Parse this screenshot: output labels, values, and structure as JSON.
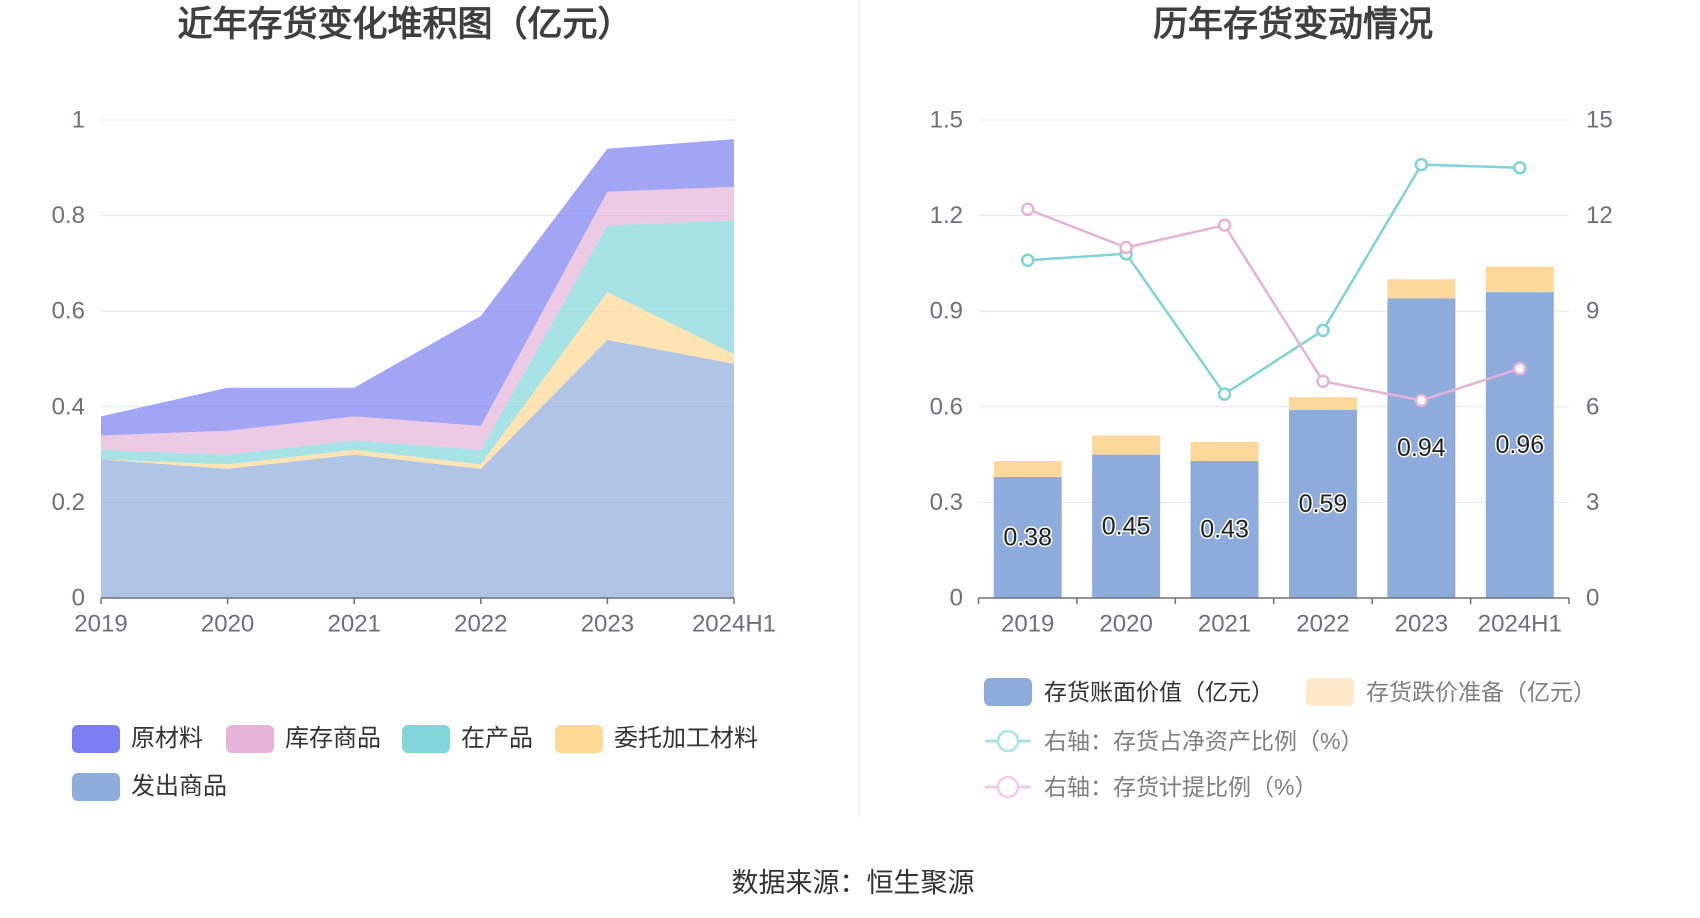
{
  "chart_data": [
    {
      "type": "area",
      "stacked": true,
      "title": "近年存货变化堆积图（亿元）",
      "xlabel": "",
      "ylabel": "",
      "categories": [
        "2019",
        "2020",
        "2021",
        "2022",
        "2023",
        "2024H1"
      ],
      "ylim": [
        0,
        1
      ],
      "yticks": [
        0,
        0.2,
        0.4,
        0.6,
        0.8,
        1
      ],
      "grid": true,
      "legend": "bottom",
      "series": [
        {
          "name": "原材料",
          "values": [
            0.04,
            0.09,
            0.06,
            0.23,
            0.09,
            0.1
          ],
          "color": "#7b7ef0"
        },
        {
          "name": "库存商品",
          "values": [
            0.03,
            0.05,
            0.05,
            0.05,
            0.07,
            0.07
          ],
          "color": "#e6b4d8"
        },
        {
          "name": "在产品",
          "values": [
            0.02,
            0.02,
            0.02,
            0.03,
            0.14,
            0.28
          ],
          "color": "#82d5d8"
        },
        {
          "name": "委托加工材料",
          "values": [
            0.0,
            0.01,
            0.01,
            0.01,
            0.1,
            0.02
          ],
          "color": "#fdd893"
        },
        {
          "name": "发出商品",
          "values": [
            0.29,
            0.27,
            0.3,
            0.27,
            0.54,
            0.49
          ],
          "color": "#8eaddb"
        }
      ]
    },
    {
      "type": "bar+line",
      "title": "历年存货变动情况",
      "xlabel": "",
      "ylabel": "",
      "categories": [
        "2019",
        "2020",
        "2021",
        "2022",
        "2023",
        "2024H1"
      ],
      "ylim_left": [
        0,
        1.5
      ],
      "yticks_left": [
        0,
        0.3,
        0.6,
        0.9,
        1.2,
        1.5
      ],
      "ylim_right": [
        0,
        15
      ],
      "yticks_right": [
        0,
        3,
        6,
        9,
        12,
        15
      ],
      "grid": true,
      "legend": "bottom",
      "bars": [
        {
          "name": "存货账面价值（亿元）",
          "values": [
            0.38,
            0.45,
            0.43,
            0.59,
            0.94,
            0.96
          ],
          "color": "#8eacdb",
          "legend_color": "#8eacdb",
          "show_labels": true
        },
        {
          "name": "存货跌价准备（亿元）",
          "values": [
            0.05,
            0.06,
            0.06,
            0.04,
            0.06,
            0.08
          ],
          "color": "#fcd99b",
          "legend_color": "#fde8c9",
          "show_labels": false
        }
      ],
      "lines": [
        {
          "name": "右轴：存货占净资产比例（%）",
          "axis": "right",
          "values": [
            10.6,
            10.8,
            6.4,
            8.4,
            13.6,
            13.5
          ],
          "color": "#7ed4d6",
          "legend_color": "#a9e3e5"
        },
        {
          "name": "右轴：存货计提比例（%）",
          "axis": "right",
          "values": [
            12.2,
            11.0,
            11.7,
            6.8,
            6.2,
            7.2
          ],
          "color": "#e4b3d7",
          "legend_color": "#efcbe5"
        }
      ]
    }
  ],
  "footer": {
    "source": "数据来源：恒生聚源"
  }
}
